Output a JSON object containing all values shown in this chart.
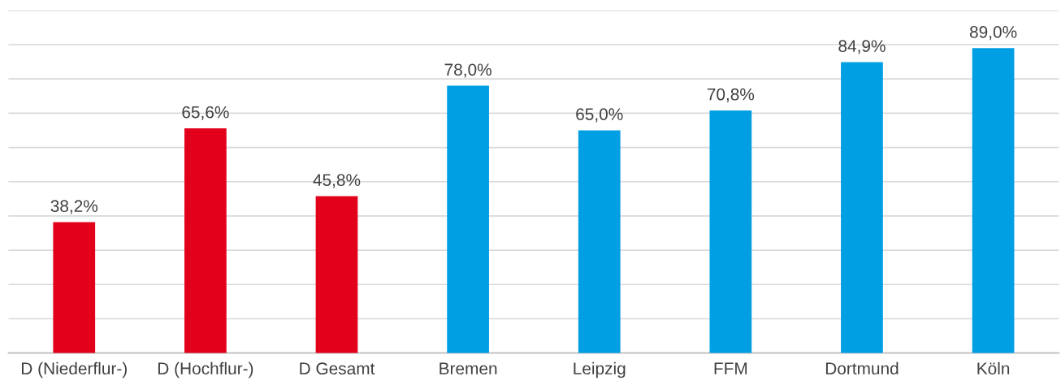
{
  "chart_data": {
    "type": "bar",
    "categories": [
      "D (Niederflur-)",
      "D (Hochflur-)",
      "D Gesamt",
      "Bremen",
      "Leipzig",
      "FFM",
      "Dortmund",
      "Köln"
    ],
    "values": [
      38.2,
      65.6,
      45.8,
      78.0,
      65.0,
      70.8,
      84.9,
      89.0
    ],
    "value_labels": [
      "38,2%",
      "65,6%",
      "45,8%",
      "78,0%",
      "65,0%",
      "70,8%",
      "84,9%",
      "89,0%"
    ],
    "colors": [
      "#e2001a",
      "#e2001a",
      "#e2001a",
      "#009fe3",
      "#009fe3",
      "#009fe3",
      "#009fe3",
      "#009fe3"
    ],
    "ylim": [
      0,
      100
    ],
    "yticks": [
      {
        "value": 0,
        "label": null
      },
      {
        "value": 10,
        "label": null
      },
      {
        "value": 20,
        "label": null
      },
      {
        "value": 30,
        "label": null
      },
      {
        "value": 40,
        "label": null
      },
      {
        "value": 50,
        "label": null
      },
      {
        "value": 60,
        "label": null
      },
      {
        "value": 70,
        "label": null
      },
      {
        "value": 80,
        "label": null
      },
      {
        "value": 90,
        "label": null
      },
      {
        "value": 100,
        "label": null
      }
    ],
    "grid": "y",
    "tick_labels": "x"
  }
}
